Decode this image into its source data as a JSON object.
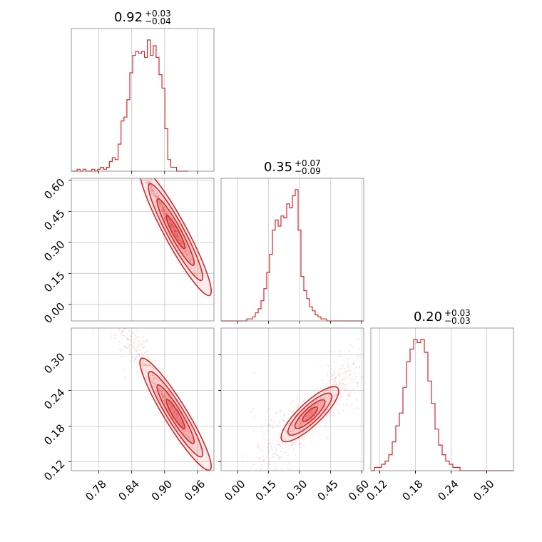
{
  "chart_data": {
    "type": "scatter",
    "subtype": "corner-plot",
    "color": "#d62728",
    "grid": true,
    "parameters": [
      {
        "median": 0.92,
        "plus": 0.03,
        "minus": 0.04,
        "range": [
          0.73,
          0.99
        ]
      },
      {
        "median": 0.35,
        "plus": 0.07,
        "minus": 0.09,
        "range": [
          -0.08,
          0.61
        ]
      },
      {
        "median": 0.2,
        "plus": 0.03,
        "minus": 0.03,
        "range": [
          0.105,
          0.345
        ]
      }
    ],
    "titles": [
      {
        "main": "0.92",
        "plus": "+0.03",
        "minus": "−0.04"
      },
      {
        "main": "0.35",
        "plus": "+0.07",
        "minus": "−0.09"
      },
      {
        "main": "0.20",
        "plus": "+0.03",
        "minus": "−0.03"
      }
    ],
    "ticks": [
      {
        "values": [
          0.78,
          0.84,
          0.9,
          0.96
        ],
        "labels": [
          "0.78",
          "0.84",
          "0.90",
          "0.96"
        ]
      },
      {
        "values": [
          0.0,
          0.15,
          0.3,
          0.45,
          0.6
        ],
        "labels": [
          "0.00",
          "0.15",
          "0.30",
          "0.45",
          "0.60"
        ]
      },
      {
        "values": [
          0.12,
          0.18,
          0.24,
          0.3
        ],
        "labels": [
          "0.12",
          "0.18",
          "0.24",
          "0.30"
        ]
      }
    ],
    "histograms": [
      {
        "param": 0,
        "edges_start": 0.73,
        "bin_width": 0.00533,
        "counts": [
          0,
          0,
          1,
          0,
          1,
          0,
          0,
          1,
          0,
          1,
          2,
          1,
          2,
          5,
          7,
          6,
          14,
          26,
          28,
          37,
          51,
          60,
          62,
          61,
          62,
          59,
          68,
          60,
          65,
          59,
          50,
          43,
          22,
          6,
          2,
          2,
          0,
          0,
          0,
          0
        ]
      },
      {
        "param": 1,
        "edges_start": -0.08,
        "bin_width": 0.0138,
        "counts": [
          0,
          0,
          0,
          0,
          0,
          0,
          0,
          0,
          0,
          1,
          1,
          2,
          4,
          6,
          10,
          16,
          24,
          33,
          45,
          50,
          47,
          52,
          51,
          58,
          56,
          62,
          65,
          45,
          22,
          15,
          11,
          7,
          5,
          3,
          2,
          1,
          1,
          0,
          0,
          0,
          0,
          0,
          0,
          0,
          0,
          0,
          0,
          0,
          0,
          0
        ]
      },
      {
        "param": 2,
        "edges_start": 0.105,
        "bin_width": 0.006,
        "counts": [
          0,
          1,
          1,
          2,
          3,
          5,
          9,
          14,
          18,
          26,
          34,
          38,
          41,
          40,
          41,
          37,
          28,
          21,
          13,
          8,
          5,
          3,
          2,
          1,
          1,
          0,
          0,
          0,
          0,
          0,
          0,
          0,
          0,
          0,
          0,
          0,
          0,
          0,
          0,
          0
        ]
      }
    ],
    "pairs": [
      {
        "x_param": 0,
        "y_param": 1,
        "correlation": "negative, nearly linear",
        "relation": "y = 0.35 - 4.9*(x - 0.92)"
      },
      {
        "x_param": 0,
        "y_param": 2,
        "correlation": "negative",
        "relation": "y = 0.20 - 1.5*(x - 0.92)"
      },
      {
        "x_param": 1,
        "y_param": 2,
        "correlation": "positive",
        "relation": "y = 0.20 + 0.33*(x - 0.35)"
      }
    ]
  }
}
